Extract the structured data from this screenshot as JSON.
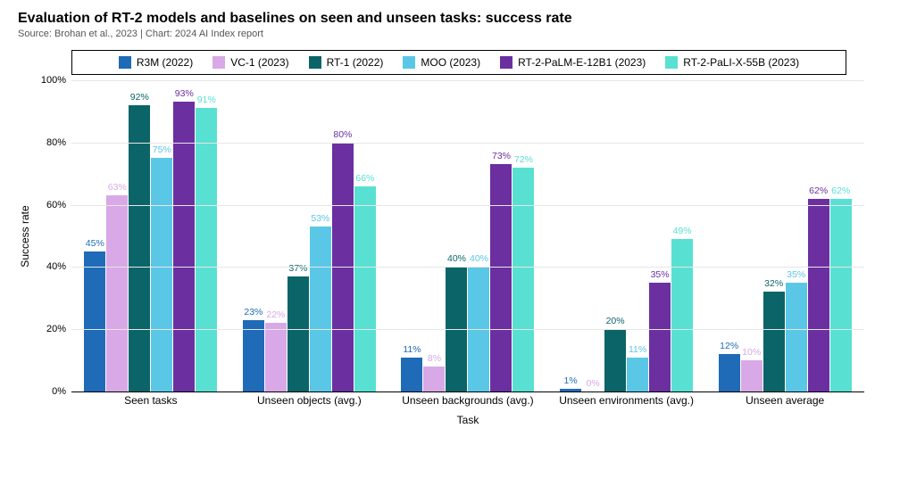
{
  "title": "Evaluation of RT-2 models and baselines on seen and unseen tasks: success rate",
  "subtitle": "Source: Brohan et al., 2023 | Chart: 2024 AI Index report",
  "title_fontsize": 16,
  "subtitle_fontsize": 11,
  "chart": {
    "type": "grouped-bar",
    "ylabel": "Success rate",
    "xlabel": "Task",
    "ylim": [
      0,
      100
    ],
    "ytick_step": 20,
    "yticks": [
      0,
      20,
      40,
      60,
      80,
      100
    ],
    "ytick_format_suffix": "%",
    "background_color": "#ffffff",
    "grid_color": "#e6e6e6",
    "axis_color": "#000000",
    "label_fontsize": 12,
    "tick_fontsize": 11,
    "value_label_fontsize": 10.5,
    "series": [
      {
        "name": "R3M (2022)",
        "color": "#1f6bb8"
      },
      {
        "name": "VC-1 (2023)",
        "color": "#d9a8e6"
      },
      {
        "name": "RT-1 (2022)",
        "color": "#0b6468"
      },
      {
        "name": "MOO (2023)",
        "color": "#5bc7e6"
      },
      {
        "name": "RT-2-PaLM-E-12B1 (2023)",
        "color": "#6b2fa0"
      },
      {
        "name": "RT-2-PaLI-X-55B (2023)",
        "color": "#58e0d2"
      }
    ],
    "categories": [
      "Seen tasks",
      "Unseen objects (avg.)",
      "Unseen backgrounds (avg.)",
      "Unseen environments (avg.)",
      "Unseen average"
    ],
    "values": [
      [
        45,
        63,
        92,
        75,
        93,
        91
      ],
      [
        23,
        22,
        37,
        53,
        80,
        66
      ],
      [
        11,
        8,
        40,
        40,
        73,
        72
      ],
      [
        1,
        0,
        20,
        11,
        35,
        49
      ],
      [
        12,
        10,
        32,
        35,
        62,
        62
      ]
    ]
  }
}
